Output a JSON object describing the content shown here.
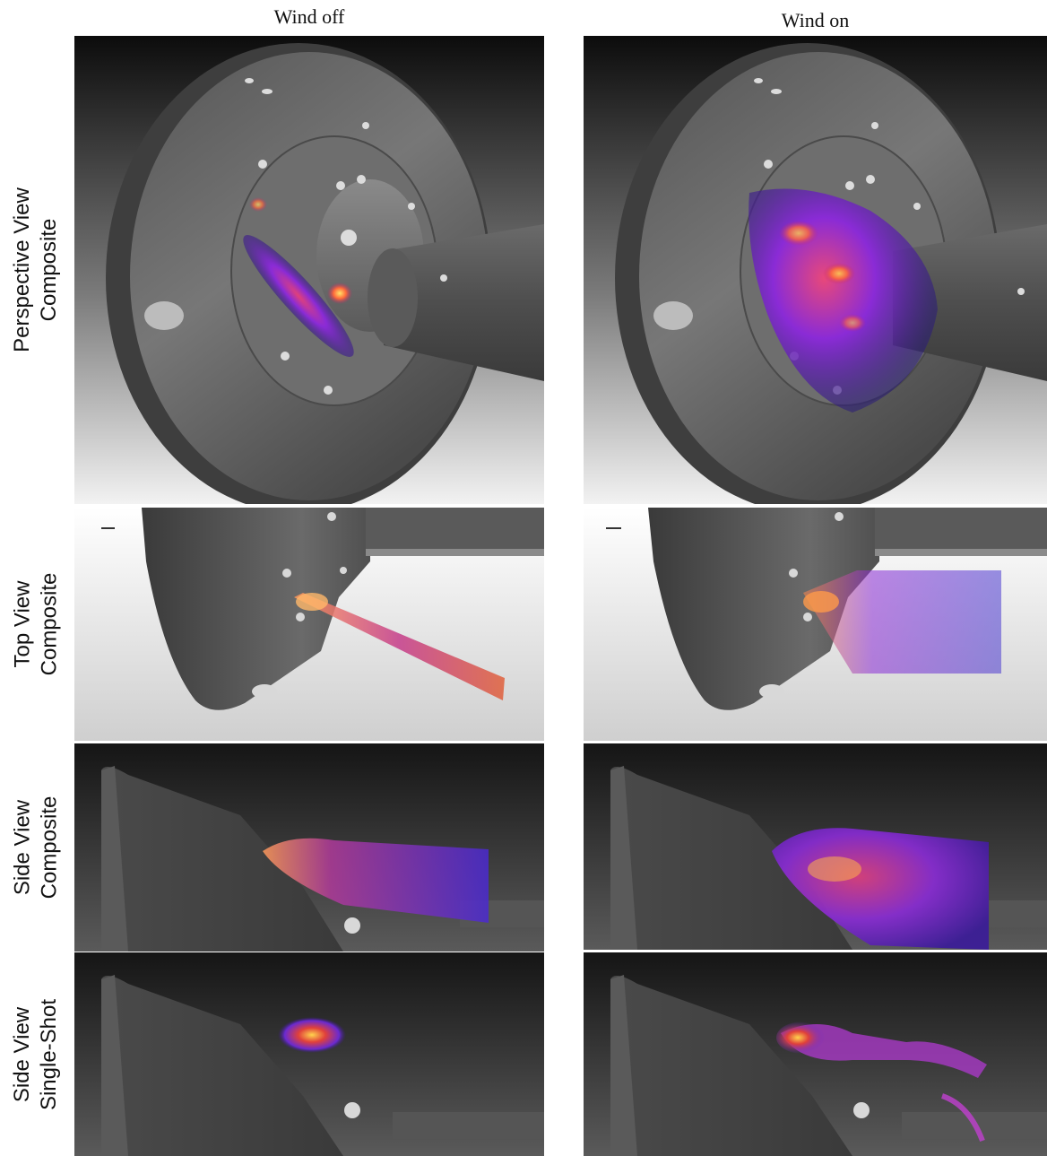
{
  "columns": [
    "Wind off",
    "Wind on"
  ],
  "rows": [
    {
      "line1": "Perspective View",
      "line2": "Composite"
    },
    {
      "line1": "Top View",
      "line2": "Composite"
    },
    {
      "line1": "Side View",
      "line2": "Composite"
    },
    {
      "line1": "Side View",
      "line2": "Single-Shot"
    }
  ],
  "colors": {
    "plume_core": "#ffd34d",
    "plume_mid": "#e0407a",
    "plume_outer": "#5a1fd6",
    "model_gray": "#6b6b6b"
  }
}
